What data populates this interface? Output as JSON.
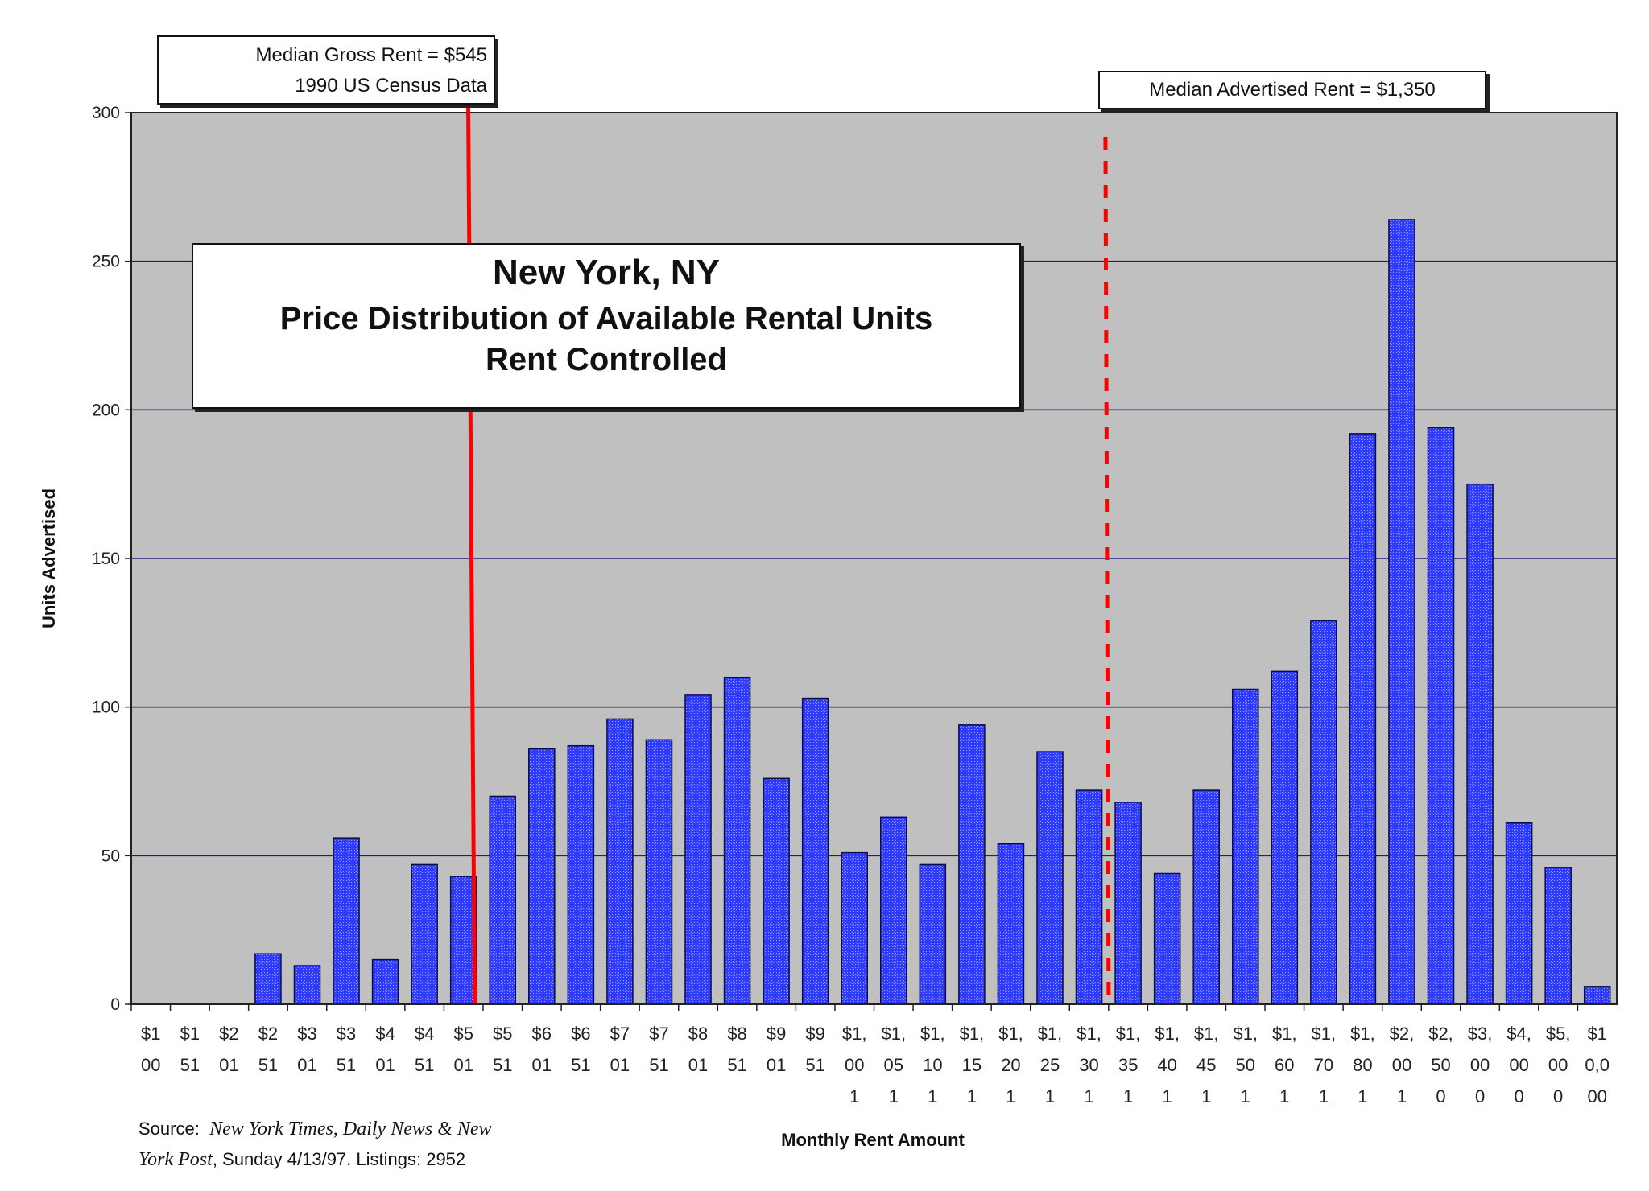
{
  "chart_data": {
    "type": "bar",
    "title": "New York, NY",
    "subtitle": "Price Distribution of Available Rental Units",
    "subtitle2": "Rent Controlled",
    "xlabel": "Monthly Rent Amount",
    "ylabel": "Units Advertised",
    "ylim": [
      0,
      300
    ],
    "yticks": [
      "0",
      "50",
      "100",
      "150",
      "200",
      "250",
      "300"
    ],
    "grid": true,
    "categories": [
      [
        "$1",
        "00"
      ],
      [
        "$1",
        "51"
      ],
      [
        "$2",
        "01"
      ],
      [
        "$2",
        "51"
      ],
      [
        "$3",
        "01"
      ],
      [
        "$3",
        "51"
      ],
      [
        "$4",
        "01"
      ],
      [
        "$4",
        "51"
      ],
      [
        "$5",
        "01"
      ],
      [
        "$5",
        "51"
      ],
      [
        "$6",
        "01"
      ],
      [
        "$6",
        "51"
      ],
      [
        "$7",
        "01"
      ],
      [
        "$7",
        "51"
      ],
      [
        "$8",
        "01"
      ],
      [
        "$8",
        "51"
      ],
      [
        "$9",
        "01"
      ],
      [
        "$9",
        "51"
      ],
      [
        "$1,",
        "00",
        "1"
      ],
      [
        "$1,",
        "05",
        "1"
      ],
      [
        "$1,",
        "10",
        "1"
      ],
      [
        "$1,",
        "15",
        "1"
      ],
      [
        "$1,",
        "20",
        "1"
      ],
      [
        "$1,",
        "25",
        "1"
      ],
      [
        "$1,",
        "30",
        "1"
      ],
      [
        "$1,",
        "35",
        "1"
      ],
      [
        "$1,",
        "40",
        "1"
      ],
      [
        "$1,",
        "45",
        "1"
      ],
      [
        "$1,",
        "50",
        "1"
      ],
      [
        "$1,",
        "60",
        "1"
      ],
      [
        "$1,",
        "70",
        "1"
      ],
      [
        "$1,",
        "80",
        "1"
      ],
      [
        "$2,",
        "00",
        "1"
      ],
      [
        "$2,",
        "50",
        "0"
      ],
      [
        "$3,",
        "00",
        "0"
      ],
      [
        "$4,",
        "00",
        "0"
      ],
      [
        "$5,",
        "00",
        "0"
      ],
      [
        "$1",
        "0,0",
        "00"
      ]
    ],
    "values": [
      0,
      0,
      0,
      17,
      13,
      56,
      15,
      47,
      43,
      70,
      86,
      87,
      96,
      89,
      104,
      110,
      76,
      103,
      51,
      63,
      47,
      94,
      54,
      85,
      72,
      68,
      44,
      72,
      106,
      112,
      129,
      192,
      264,
      194,
      175,
      61,
      46,
      6
    ],
    "reference_lines": [
      {
        "name": "median-gross-rent",
        "category_position": 8.62,
        "style": "solid"
      },
      {
        "name": "median-advertised-rent",
        "category_position": 24.92,
        "style": "dashed"
      }
    ],
    "annotations": {
      "median_gross_line1": "Median Gross Rent = $545",
      "median_gross_line2": "1990 US Census Data",
      "median_advertised": "Median Advertised Rent = $1,350"
    },
    "source": {
      "prefix": "Source:",
      "publication1": "New York Times, Daily News & New",
      "publication2": "York Post",
      "suffix": ", Sunday 4/13/97.  Listings:  2952"
    }
  },
  "colors": {
    "plot_bg": "#c0c0c0",
    "bar_fill": "#2f3cff",
    "bar_edge": "#0b0b4a",
    "grid": "#20207a",
    "ref_line": "#ff0000"
  }
}
